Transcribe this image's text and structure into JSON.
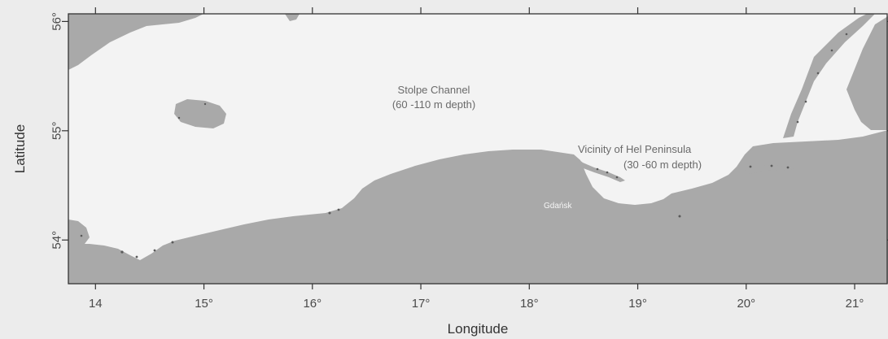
{
  "map": {
    "x_axis": {
      "title": "Longitude",
      "ticks": [
        {
          "value": 14,
          "label": "14"
        },
        {
          "value": 15,
          "label": "15°"
        },
        {
          "value": 16,
          "label": "16°"
        },
        {
          "value": 17,
          "label": "17°"
        },
        {
          "value": 18,
          "label": "18°"
        },
        {
          "value": 19,
          "label": "19°"
        },
        {
          "value": 20,
          "label": "20°"
        },
        {
          "value": 21,
          "label": "21°"
        }
      ],
      "range": [
        13.75,
        21.3
      ]
    },
    "y_axis": {
      "title": "Latitude",
      "ticks": [
        {
          "value": 54,
          "label": "54°"
        },
        {
          "value": 55,
          "label": "55°"
        },
        {
          "value": 56,
          "label": "56°"
        }
      ],
      "range": [
        53.6,
        56.07
      ]
    },
    "annotations": {
      "stolpe_line1": "Stolpe Channel",
      "stolpe_line2": "(60 -110 m depth)",
      "hel_line1": "Vicinity of Hel Peninsula",
      "hel_line2": "(30 -60 m depth)",
      "city": "Gdańsk"
    },
    "colors": {
      "sea": "#f3f3f3",
      "land": "#a9a9a9",
      "frame": "#333333",
      "coast_speckle": "#555555"
    }
  }
}
